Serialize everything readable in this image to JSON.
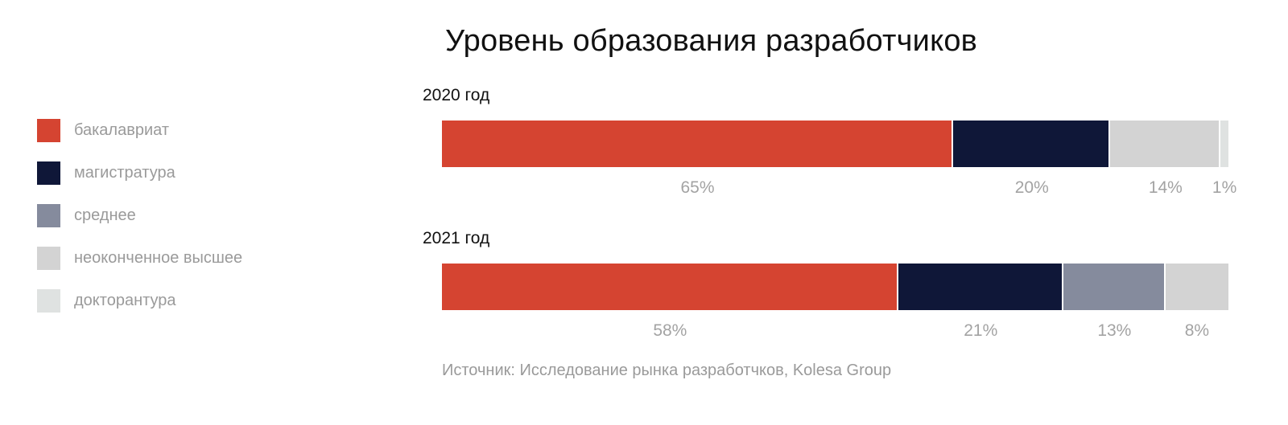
{
  "chart_data": {
    "type": "bar",
    "orientation": "horizontal",
    "stacked": true,
    "title": "Уровень образования разработчиков",
    "source": "Источник: Исследование рынка разработчков, Kolesa Group",
    "legend_position": "left",
    "grid": false,
    "categories": [
      "бакалавриат",
      "магистратура",
      "среднее",
      "неоконченное высшее",
      "докторантура"
    ],
    "colors": [
      "#d54431",
      "#0f1738",
      "#858b9d",
      "#d3d3d3",
      "#dfe2e1"
    ],
    "rows": [
      {
        "label": "2020 год",
        "segments": [
          {
            "category": "бакалавриат",
            "value": 65,
            "label": "65%",
            "color": "#d54431"
          },
          {
            "category": "магистратура",
            "value": 20,
            "label": "20%",
            "color": "#0f1738"
          },
          {
            "category": "неоконченное высшее",
            "value": 14,
            "label": "14%",
            "color": "#d3d3d3"
          },
          {
            "category": "докторантура",
            "value": 1,
            "label": "1%",
            "color": "#dfe2e1"
          }
        ]
      },
      {
        "label": "2021 год",
        "segments": [
          {
            "category": "бакалавриат",
            "value": 58,
            "label": "58%",
            "color": "#d54431"
          },
          {
            "category": "магистратура",
            "value": 21,
            "label": "21%",
            "color": "#0f1738"
          },
          {
            "category": "среднее",
            "value": 13,
            "label": "13%",
            "color": "#858b9d"
          },
          {
            "category": "неоконченное высшее",
            "value": 8,
            "label": "8%",
            "color": "#d3d3d3"
          }
        ]
      }
    ]
  }
}
